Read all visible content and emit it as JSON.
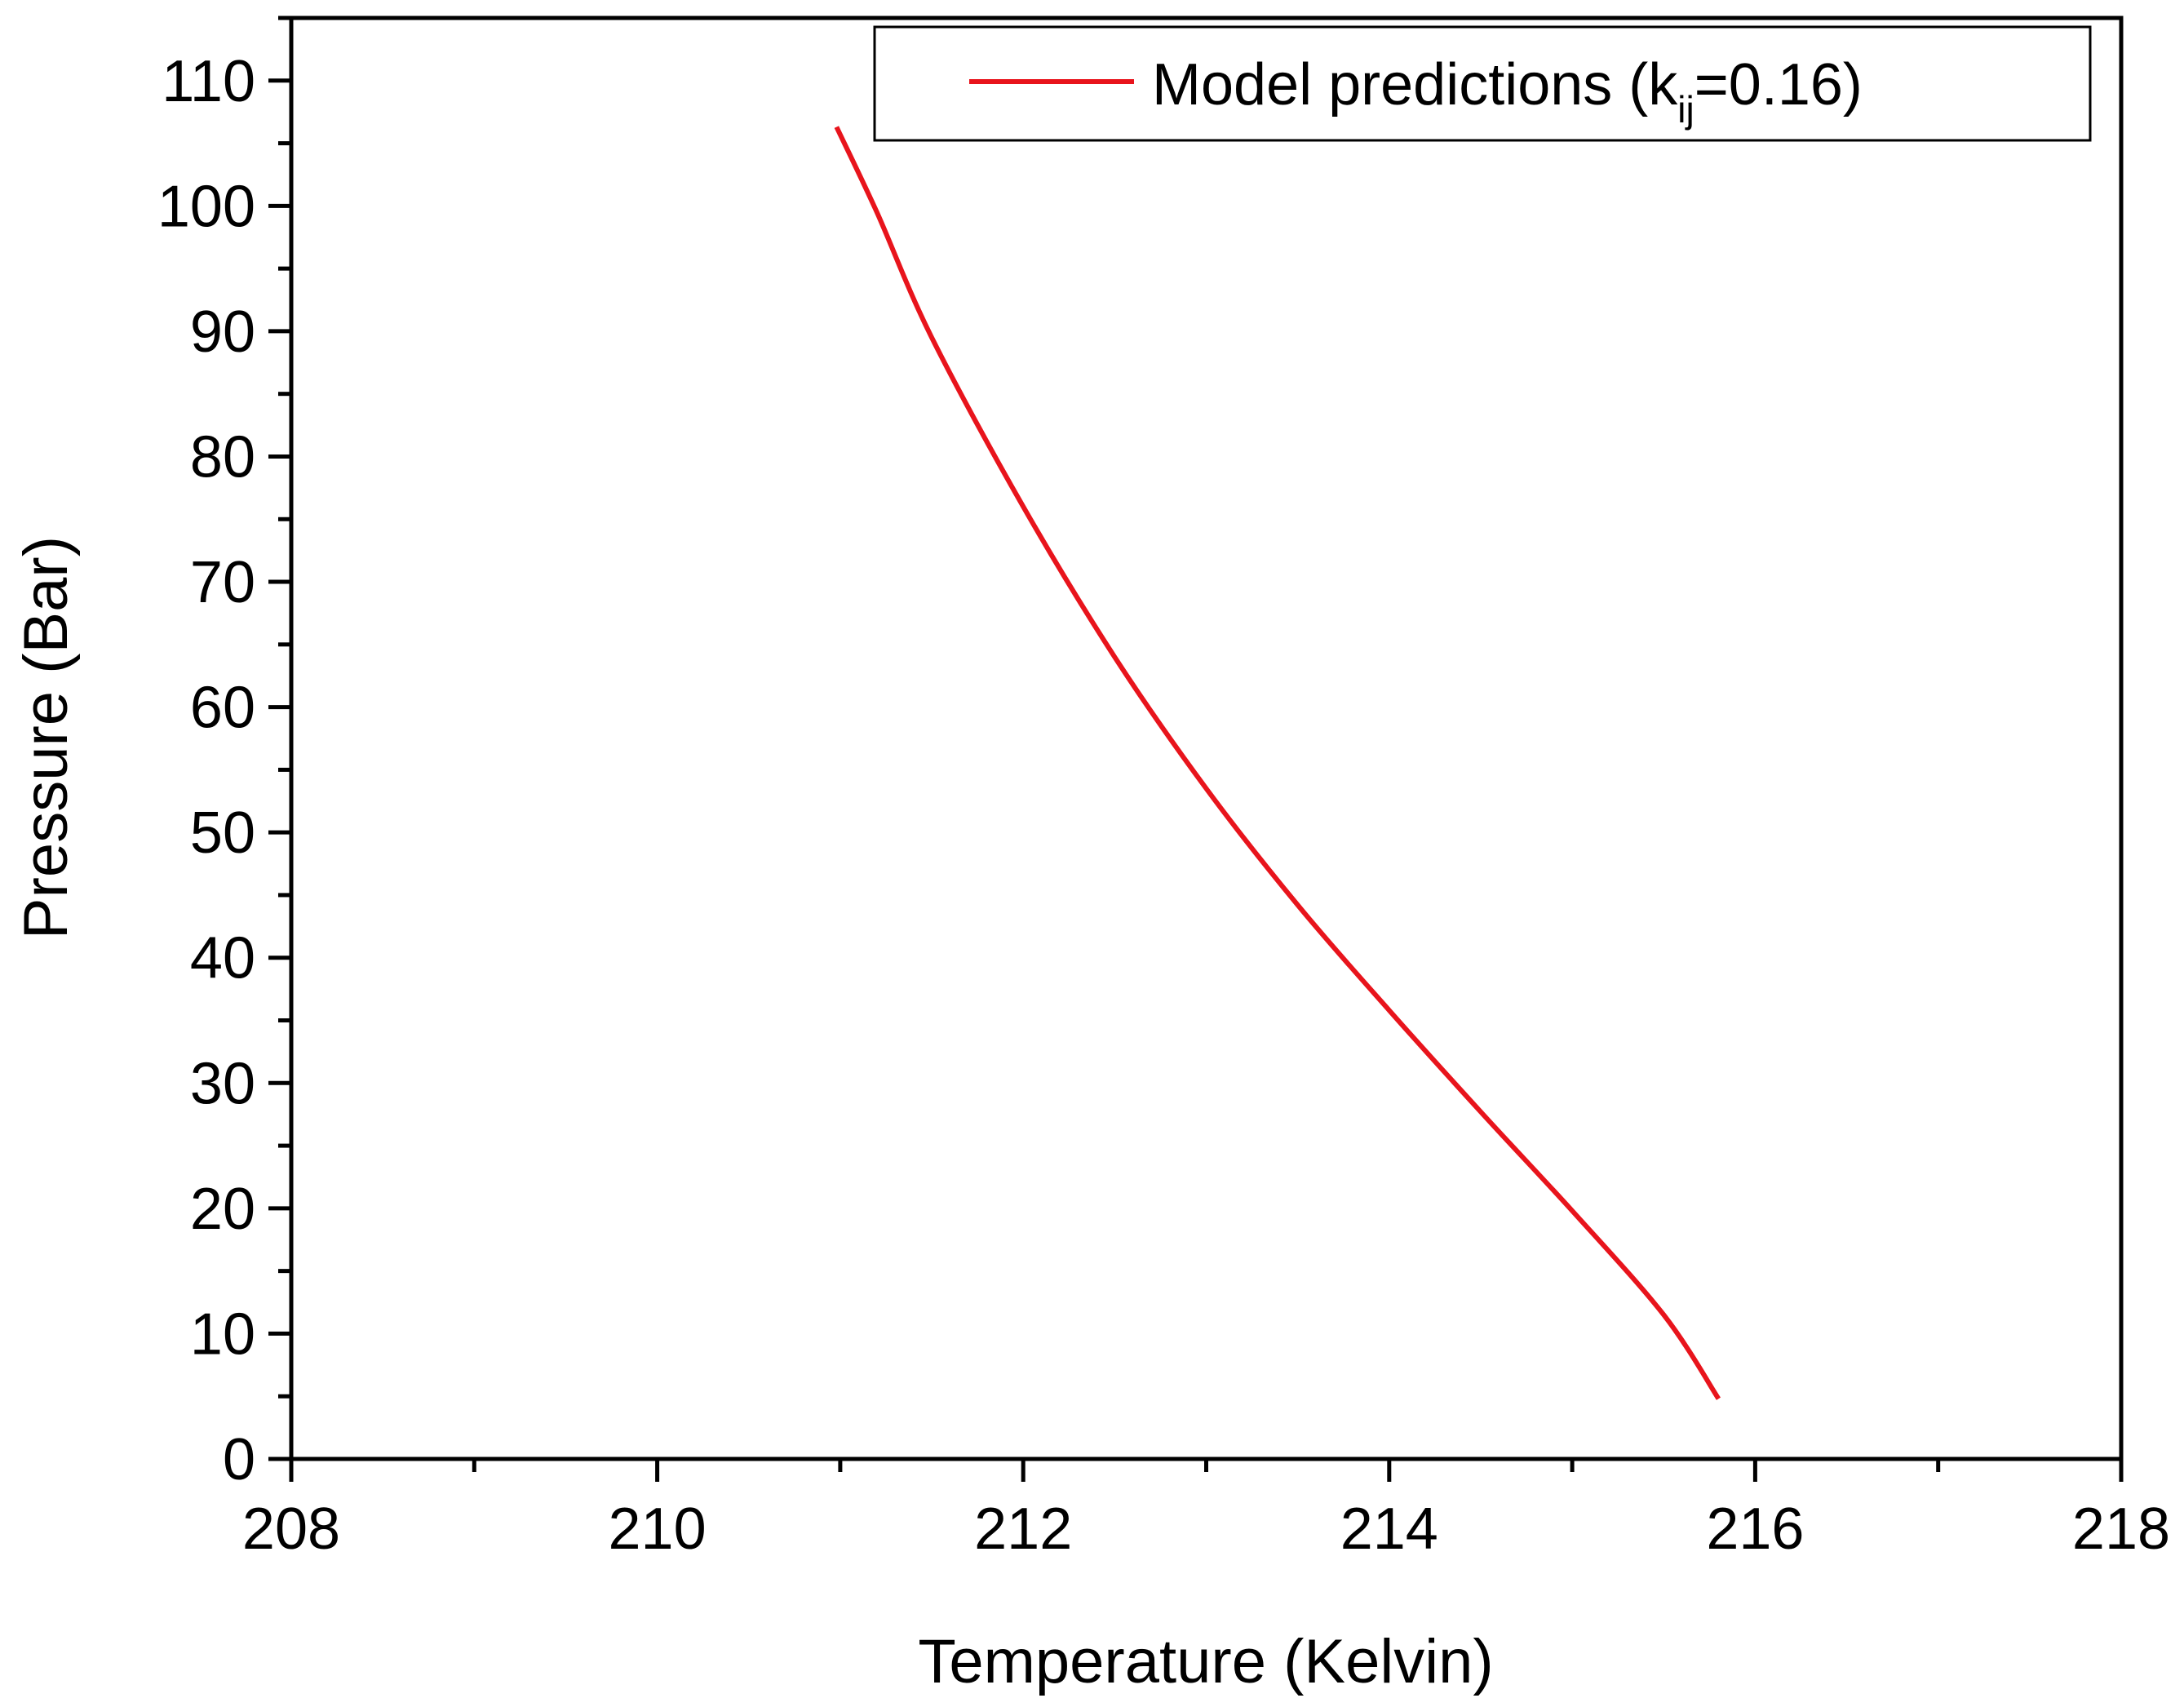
{
  "chart_data": {
    "type": "line",
    "title": "",
    "xlabel": "Temperature (Kelvin)",
    "ylabel": "Pressure (Bar)",
    "xlim": [
      208,
      218
    ],
    "ylim": [
      0,
      115
    ],
    "x_ticks": [
      208,
      210,
      212,
      214,
      216,
      218
    ],
    "y_ticks": [
      0,
      10,
      20,
      30,
      40,
      50,
      60,
      70,
      80,
      90,
      100,
      110
    ],
    "x_minor_step": 1,
    "y_minor_step": 5,
    "grid": false,
    "legend_position": "top-right",
    "colors": {
      "axis": "#000000",
      "series": "#e8141c"
    },
    "series": [
      {
        "name": "Model predictions (kij=0.16)",
        "legend": {
          "prefix": "Model  predictions (k",
          "subscript": "ij",
          "suffix": "=0.16)"
        },
        "x": [
          210.98,
          211.2,
          211.5,
          212.0,
          212.5,
          213.0,
          213.5,
          214.0,
          214.5,
          215.0,
          215.5,
          215.8
        ],
        "y": [
          106.3,
          99.5,
          89.5,
          76.0,
          64.0,
          53.5,
          44.2,
          35.8,
          27.7,
          19.8,
          11.5,
          4.8
        ]
      }
    ]
  }
}
